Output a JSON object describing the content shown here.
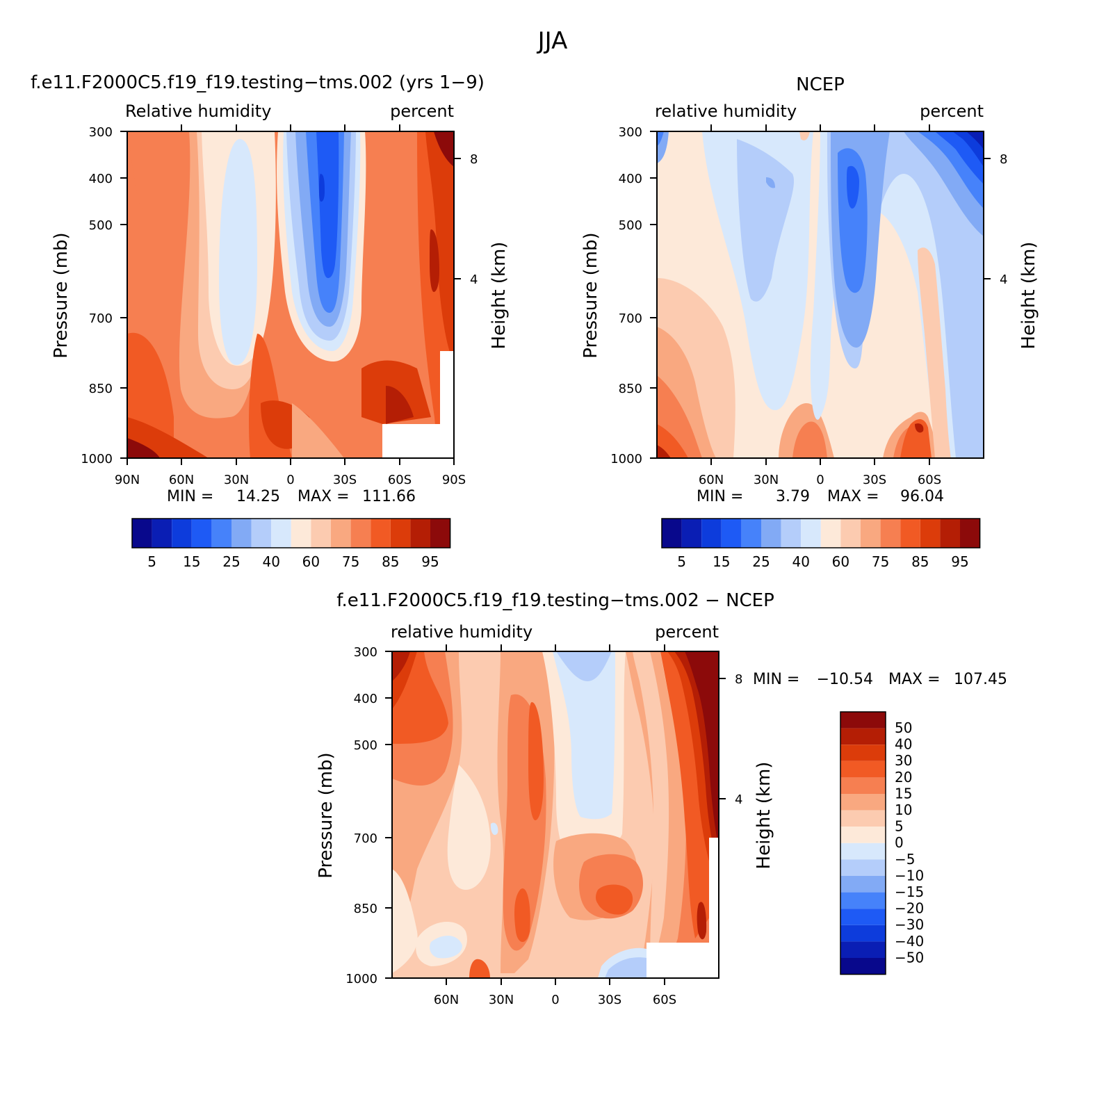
{
  "page_title": "JJA",
  "chart_data": [
    {
      "type": "heatmap",
      "subtype": "filled-contour latitude-pressure cross-section",
      "title": "f.e11.F2000C5.f19_f19.testing−tms.002 (yrs 1−9)",
      "left_label": "Relative humidity",
      "right_label": "percent",
      "ylabel": "Pressure (mb)",
      "ylabel_right": "Height (km)",
      "x_ticks": [
        "90N",
        "60N",
        "30N",
        "0",
        "30S",
        "60S",
        "90S"
      ],
      "y_ticks": [
        "300",
        "400",
        "500",
        "700",
        "850",
        "1000"
      ],
      "y_ticks_right": [
        "8",
        "4"
      ],
      "xlim": [
        90,
        -90
      ],
      "ylim": [
        1000,
        300
      ],
      "stats": {
        "min_label": "MIN =",
        "min": "14.25",
        "max_label": "MAX =",
        "max": "111.66"
      },
      "colorbar_labels": [
        "5",
        "15",
        "25",
        "40",
        "60",
        "75",
        "85",
        "95"
      ],
      "colors": [
        "#08088c",
        "#0a1eb4",
        "#0d3cdc",
        "#1e5af5",
        "#4682fa",
        "#82aaf5",
        "#b4cdfa",
        "#d7e8fc",
        "#fde9d9",
        "#fccbb0",
        "#f9a880",
        "#f67f51",
        "#f15a24",
        "#dc3c0a",
        "#b41e05",
        "#8c0a0a"
      ]
    },
    {
      "type": "heatmap",
      "subtype": "filled-contour latitude-pressure cross-section",
      "title": "NCEP",
      "left_label": "relative humidity",
      "right_label": "percent",
      "ylabel": "Pressure (mb)",
      "ylabel_right": "Height (km)",
      "x_ticks": [
        "60N",
        "30N",
        "0",
        "30S",
        "60S"
      ],
      "y_ticks": [
        "300",
        "400",
        "500",
        "700",
        "850",
        "1000"
      ],
      "y_ticks_right": [
        "8",
        "4"
      ],
      "xlim": [
        90,
        -90
      ],
      "ylim": [
        1000,
        300
      ],
      "stats": {
        "min_label": "MIN =",
        "min": "3.79",
        "max_label": "MAX =",
        "max": "96.04"
      },
      "colorbar_labels": [
        "5",
        "15",
        "25",
        "40",
        "60",
        "75",
        "85",
        "95"
      ],
      "colors": [
        "#08088c",
        "#0a1eb4",
        "#0d3cdc",
        "#1e5af5",
        "#4682fa",
        "#82aaf5",
        "#b4cdfa",
        "#d7e8fc",
        "#fde9d9",
        "#fccbb0",
        "#f9a880",
        "#f67f51",
        "#f15a24",
        "#dc3c0a",
        "#b41e05",
        "#8c0a0a"
      ]
    },
    {
      "type": "heatmap",
      "subtype": "filled-contour latitude-pressure difference",
      "title": "f.e11.F2000C5.f19_f19.testing−tms.002 − NCEP",
      "left_label": "relative humidity",
      "right_label": "percent",
      "ylabel": "Pressure (mb)",
      "ylabel_right": "Height (km)",
      "x_ticks": [
        "60N",
        "30N",
        "0",
        "30S",
        "60S"
      ],
      "y_ticks": [
        "300",
        "400",
        "500",
        "700",
        "850",
        "1000"
      ],
      "y_ticks_right": [
        "8",
        "4"
      ],
      "xlim": [
        90,
        -90
      ],
      "ylim": [
        1000,
        300
      ],
      "stats": {
        "min_label": "MIN =",
        "min": "−10.54",
        "max_label": "MAX =",
        "max": "107.45"
      },
      "colorbar_labels": [
        "50",
        "40",
        "30",
        "20",
        "15",
        "10",
        "5",
        "0",
        "−5",
        "−10",
        "−15",
        "−20",
        "−30",
        "−40",
        "−50"
      ],
      "colors": [
        "#8c0a0a",
        "#b41e05",
        "#dc3c0a",
        "#f15a24",
        "#f67f51",
        "#f9a880",
        "#fccbb0",
        "#fde9d9",
        "#d7e8fc",
        "#b4cdfa",
        "#82aaf5",
        "#4682fa",
        "#1e5af5",
        "#0d3cdc",
        "#0a1eb4",
        "#08088c"
      ]
    }
  ]
}
